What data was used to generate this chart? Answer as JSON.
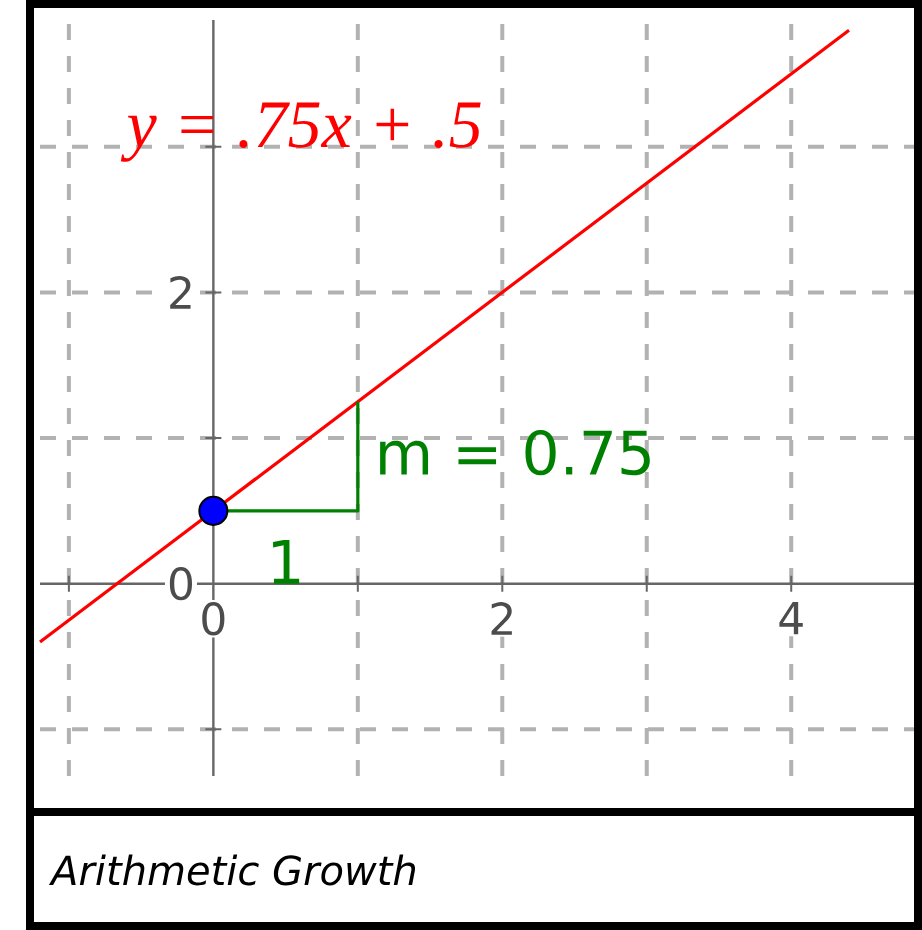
{
  "chart_data": {
    "type": "line",
    "series": [
      {
        "name": "y = .75x + .5",
        "color": "#ff0000",
        "marker": "none",
        "x": [
          -1.2,
          4.4
        ],
        "values": [
          -0.4,
          3.8
        ]
      },
      {
        "color": "#008000",
        "marker": "none",
        "x": [
          0,
          1,
          1
        ],
        "values": [
          0.5,
          0.5,
          1.25
        ]
      },
      {
        "type": "scatter",
        "color": "#0000ff",
        "marker": "circle",
        "x": [
          0
        ],
        "values": [
          0.5
        ]
      }
    ],
    "annotations": [
      "m = 0.75",
      "1",
      "Arithmetic Growth"
    ],
    "xlim": [
      -1.2,
      4.85
    ],
    "ylim": [
      -1.32,
      3.87
    ],
    "xticks": [
      {
        "value": -1,
        "label": null
      },
      0,
      {
        "value": 1,
        "label": null
      },
      2,
      {
        "value": 3,
        "label": null
      },
      4
    ],
    "yticks": [
      {
        "value": -1,
        "label": null
      },
      0,
      {
        "value": 1,
        "label": null
      },
      2,
      {
        "value": 3,
        "label": null
      }
    ],
    "grid": true
  }
}
